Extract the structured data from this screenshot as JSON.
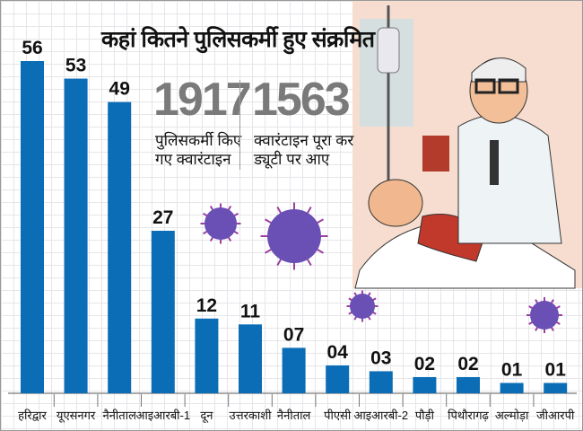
{
  "chart_data": {
    "type": "bar",
    "title": "कहां कितने पुलिसकर्मी हुए संक्रमित",
    "categories": [
      "हरिद्वार",
      "यूएसनगर",
      "नैनीताल",
      "आइआरबी-1",
      "दून",
      "उत्तरकाशी",
      "नैनीताल",
      "पीएसी",
      "आइआरबी-2",
      "पौड़ी",
      "पिथौरागढ़",
      "अल्मोड़ा",
      "जीआरपी"
    ],
    "values": [
      56,
      53,
      49,
      27,
      12,
      11,
      7,
      4,
      3,
      2,
      2,
      1,
      1
    ],
    "data_labels": [
      "56",
      "53",
      "49",
      "27",
      "12",
      "11",
      "07",
      "04",
      "03",
      "02",
      "02",
      "01",
      "01"
    ],
    "xlabel": "",
    "ylabel": "",
    "ylim": [
      0,
      56
    ],
    "bar_color": "#0b6db5",
    "grid": true
  },
  "stats": [
    {
      "value": "1917",
      "label": "पुलिसकर्मी किए गए क्वारंटाइन"
    },
    {
      "value": "1563",
      "label": "क्वारंटाइन पूरा कर ड्यूटी पर आए"
    }
  ]
}
